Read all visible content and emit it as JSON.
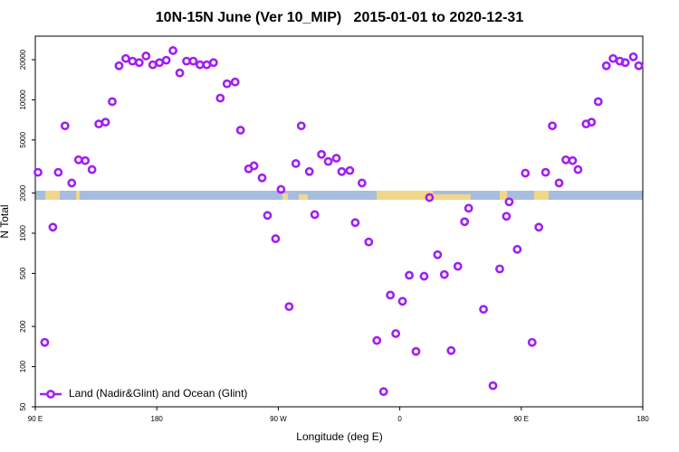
{
  "chart_data": {
    "type": "scatter",
    "title": "10N-15N June (Ver 10_MIP)   2015-01-01 to 2020-12-31",
    "x_label": "Longitude (deg E)",
    "y_label": "N Total",
    "log_y": true,
    "xlim": [
      90,
      540
    ],
    "xticks": [
      {
        "value": 90,
        "label": "90 E"
      },
      180,
      {
        "value": 270,
        "label": "90 W"
      },
      {
        "value": 360,
        "label": "0"
      },
      {
        "value": 450,
        "label": "90 E"
      },
      {
        "value": 540,
        "label": "180"
      }
    ],
    "ylim": [
      50,
      30000
    ],
    "yticks": [
      50,
      100,
      200,
      500,
      1000,
      2000,
      5000,
      10000,
      20000
    ],
    "legend": "bottom-left",
    "series": [
      {
        "name": "Land (Nadir&Glint) and Ocean (Glint)",
        "color": "#a020f0",
        "x": [
          92,
          97,
          103,
          107,
          112,
          117,
          122,
          127,
          132,
          137,
          142,
          147,
          152,
          157,
          162,
          167,
          172,
          177,
          182,
          187,
          192,
          197,
          202,
          207,
          212,
          217,
          222,
          227,
          232,
          238,
          242,
          248,
          252,
          258,
          262,
          268,
          272,
          278,
          283,
          287,
          293,
          297,
          302,
          307,
          313,
          317,
          323,
          327,
          332,
          337,
          343,
          348,
          353,
          357,
          362,
          367,
          372,
          378,
          382,
          388,
          393,
          398,
          403,
          408,
          411,
          422,
          429,
          434,
          439,
          441,
          447,
          453,
          458,
          463,
          468,
          473,
          478,
          483,
          488,
          492,
          498,
          502,
          507,
          513,
          518,
          523,
          527,
          533,
          537
        ],
        "values": [
          2860,
          152,
          1110,
          2860,
          6380,
          2380,
          3550,
          3500,
          3000,
          6590,
          6800,
          9700,
          18000,
          20400,
          19500,
          19000,
          21300,
          18300,
          19000,
          19800,
          23400,
          15900,
          19500,
          19500,
          18300,
          18300,
          19000,
          10300,
          13200,
          13600,
          5920,
          3040,
          3200,
          2600,
          1360,
          910,
          2130,
          282,
          3330,
          6380,
          2900,
          1380,
          3900,
          3450,
          3650,
          2900,
          2950,
          1200,
          2380,
          860,
          157,
          65,
          344,
          177,
          309,
          484,
          130,
          476,
          1850,
          690,
          490,
          132,
          565,
          1220,
          1540,
          269,
          72,
          540,
          1340,
          1720,
          757,
          2820,
          152,
          1110,
          2860,
          6380,
          2380,
          3550,
          3500,
          3000,
          6590,
          6800,
          9700,
          18000,
          20400,
          19500,
          19000,
          21000,
          18000
        ]
      }
    ]
  }
}
